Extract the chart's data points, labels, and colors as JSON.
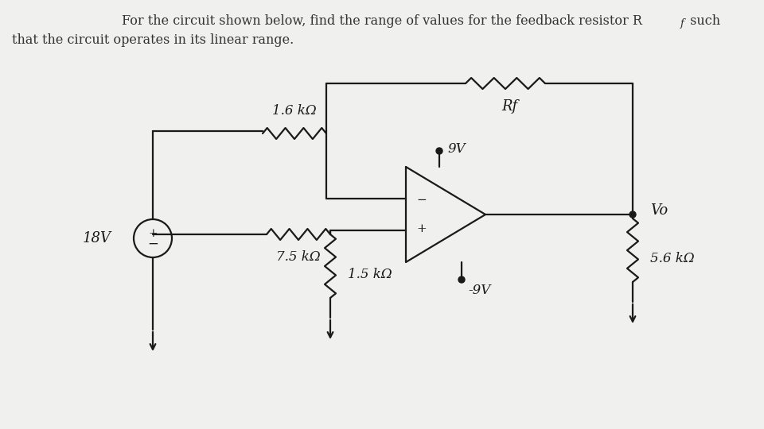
{
  "bg_color": "#f0f0ee",
  "line_color": "#1a1a1a",
  "label_16k": "1.6 kΩ",
  "label_rf": "Rf",
  "label_9v_pos": "9V",
  "label_neg9v": "-9V",
  "label_vo": "Vo",
  "label_18v": "18V",
  "label_75k": "7.5 kΩ",
  "label_15k": "1.5 kΩ",
  "label_56k": "5.6 kΩ",
  "title1": "For the circuit shown below, find the range of values for the feedback resistor R",
  "title1_sub": "f",
  "title1_end": " such",
  "title2": "that the circuit operates in its linear range."
}
